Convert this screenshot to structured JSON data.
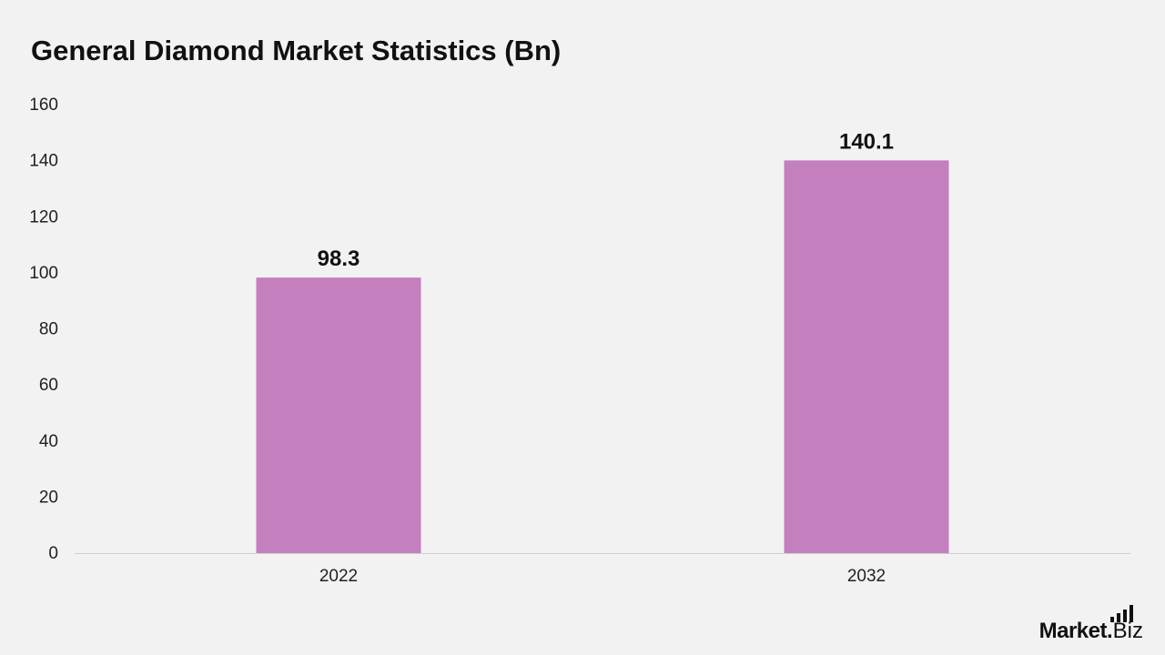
{
  "chart_data": {
    "type": "bar",
    "title": "General Diamond Market Statistics (Bn)",
    "categories": [
      "2022",
      "2032"
    ],
    "values": [
      98.3,
      140.1
    ],
    "data_labels": [
      "98.3",
      "140.1"
    ],
    "yticks": [
      "0",
      "20",
      "40",
      "60",
      "80",
      "100",
      "120",
      "140",
      "160"
    ],
    "ylim": [
      0,
      160
    ],
    "grid": false,
    "legend": "none",
    "bar_color": "#c47fbe"
  },
  "logo": {
    "main": "Market",
    "dot": ".",
    "suffix": "Biz"
  }
}
